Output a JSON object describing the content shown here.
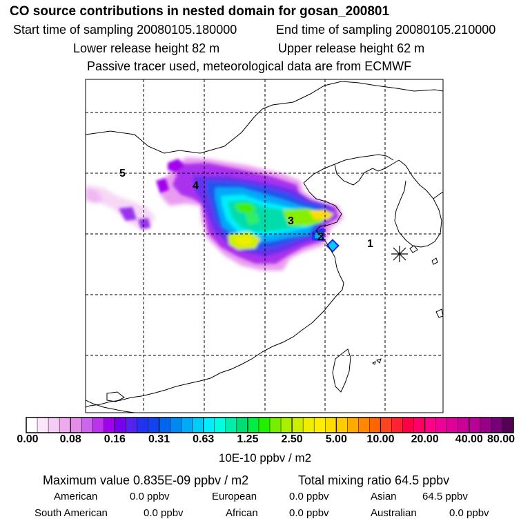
{
  "header": {
    "title": "CO  source contributions in nested domain for gosan_200801",
    "start_label": "Start time of sampling 20080105.180000",
    "end_label": "End time of sampling 20080105.210000",
    "lower_label": "Lower release height   82 m",
    "upper_label": "Upper release height   62 m",
    "note": "Passive tracer used, meteorological data are from ECMWF"
  },
  "map": {
    "region_labels": [
      "1",
      "2",
      "3",
      "4",
      "5"
    ]
  },
  "colorbar": {
    "tick_labels": [
      "0.00",
      "0.08",
      "0.16",
      "0.31",
      "0.63",
      "1.25",
      "2.50",
      "5.00",
      "10.00",
      "20.00",
      "40.00",
      "80.00"
    ],
    "unit": "10E-10 ppbv / m2",
    "colors": [
      "#ffffff",
      "#fbe6fb",
      "#f5ccf5",
      "#eeaaef",
      "#e38de8",
      "#cc66ee",
      "#bb33ee",
      "#a000ee",
      "#7700ee",
      "#5522ee",
      "#2233ee",
      "#1144ee",
      "#0066f0",
      "#0088f5",
      "#00aaf8",
      "#00ccfa",
      "#00eeff",
      "#00ffe0",
      "#00eeaa",
      "#00dd77",
      "#00ee44",
      "#22ee00",
      "#77ee00",
      "#aaee00",
      "#ccee00",
      "#eeee00",
      "#ffee00",
      "#ffdd00",
      "#ffcc00",
      "#ffaa00",
      "#ff8800",
      "#ff6600",
      "#ff4422",
      "#ff2233",
      "#ff0044",
      "#ff0066",
      "#ff0088",
      "#ee0099",
      "#dd0099",
      "#cc0099",
      "#bb0099",
      "#990088",
      "#770077",
      "#550055"
    ]
  },
  "footer": {
    "max_label": "Maximum value  0.835E-09 ppbv / m2",
    "total_label": "Total mixing ratio       64.5 ppbv",
    "american_label": "American",
    "american_value": "0.0 ppbv",
    "european_label": "European",
    "european_value": "0.0 ppbv",
    "asian_label": "Asian",
    "asian_value": "64.5 ppbv",
    "south_american_label": "South American",
    "south_american_value": "0.0 ppbv",
    "african_label": "African",
    "african_value": "0.0 ppbv",
    "australian_label": "Australian",
    "australian_value": "0.0 ppbv"
  }
}
